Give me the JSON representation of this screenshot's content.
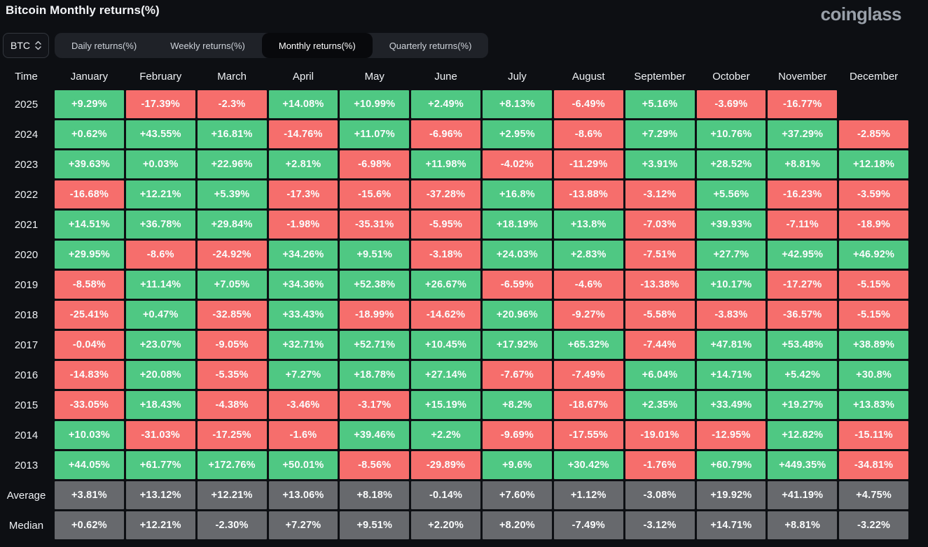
{
  "header": {
    "title": "Bitcoin Monthly returns(%)",
    "logo": "coinglass"
  },
  "controls": {
    "symbol": "BTC",
    "tabs": [
      {
        "label": "Daily returns(%)",
        "active": false
      },
      {
        "label": "Weekly returns(%)",
        "active": false
      },
      {
        "label": "Monthly returns(%)",
        "active": true
      },
      {
        "label": "Quarterly returns(%)",
        "active": false
      }
    ]
  },
  "colors": {
    "positive": "#4fc883",
    "negative": "#f66e6c",
    "summary": "#67696d",
    "background": "#0d0f13"
  },
  "chart_data": {
    "type": "heatmap",
    "title": "Bitcoin Monthly returns(%)",
    "time_label": "Time",
    "months": [
      "January",
      "February",
      "March",
      "April",
      "May",
      "June",
      "July",
      "August",
      "September",
      "October",
      "November",
      "December"
    ],
    "rows": [
      {
        "label": "2025",
        "summary": false,
        "values": [
          "+9.29%",
          "-17.39%",
          "-2.3%",
          "+14.08%",
          "+10.99%",
          "+2.49%",
          "+8.13%",
          "-6.49%",
          "+5.16%",
          "-3.69%",
          "-16.77%",
          ""
        ]
      },
      {
        "label": "2024",
        "summary": false,
        "values": [
          "+0.62%",
          "+43.55%",
          "+16.81%",
          "-14.76%",
          "+11.07%",
          "-6.96%",
          "+2.95%",
          "-8.6%",
          "+7.29%",
          "+10.76%",
          "+37.29%",
          "-2.85%"
        ]
      },
      {
        "label": "2023",
        "summary": false,
        "values": [
          "+39.63%",
          "+0.03%",
          "+22.96%",
          "+2.81%",
          "-6.98%",
          "+11.98%",
          "-4.02%",
          "-11.29%",
          "+3.91%",
          "+28.52%",
          "+8.81%",
          "+12.18%"
        ]
      },
      {
        "label": "2022",
        "summary": false,
        "values": [
          "-16.68%",
          "+12.21%",
          "+5.39%",
          "-17.3%",
          "-15.6%",
          "-37.28%",
          "+16.8%",
          "-13.88%",
          "-3.12%",
          "+5.56%",
          "-16.23%",
          "-3.59%"
        ]
      },
      {
        "label": "2021",
        "summary": false,
        "values": [
          "+14.51%",
          "+36.78%",
          "+29.84%",
          "-1.98%",
          "-35.31%",
          "-5.95%",
          "+18.19%",
          "+13.8%",
          "-7.03%",
          "+39.93%",
          "-7.11%",
          "-18.9%"
        ]
      },
      {
        "label": "2020",
        "summary": false,
        "values": [
          "+29.95%",
          "-8.6%",
          "-24.92%",
          "+34.26%",
          "+9.51%",
          "-3.18%",
          "+24.03%",
          "+2.83%",
          "-7.51%",
          "+27.7%",
          "+42.95%",
          "+46.92%"
        ]
      },
      {
        "label": "2019",
        "summary": false,
        "values": [
          "-8.58%",
          "+11.14%",
          "+7.05%",
          "+34.36%",
          "+52.38%",
          "+26.67%",
          "-6.59%",
          "-4.6%",
          "-13.38%",
          "+10.17%",
          "-17.27%",
          "-5.15%"
        ]
      },
      {
        "label": "2018",
        "summary": false,
        "values": [
          "-25.41%",
          "+0.47%",
          "-32.85%",
          "+33.43%",
          "-18.99%",
          "-14.62%",
          "+20.96%",
          "-9.27%",
          "-5.58%",
          "-3.83%",
          "-36.57%",
          "-5.15%"
        ]
      },
      {
        "label": "2017",
        "summary": false,
        "values": [
          "-0.04%",
          "+23.07%",
          "-9.05%",
          "+32.71%",
          "+52.71%",
          "+10.45%",
          "+17.92%",
          "+65.32%",
          "-7.44%",
          "+47.81%",
          "+53.48%",
          "+38.89%"
        ]
      },
      {
        "label": "2016",
        "summary": false,
        "values": [
          "-14.83%",
          "+20.08%",
          "-5.35%",
          "+7.27%",
          "+18.78%",
          "+27.14%",
          "-7.67%",
          "-7.49%",
          "+6.04%",
          "+14.71%",
          "+5.42%",
          "+30.8%"
        ]
      },
      {
        "label": "2015",
        "summary": false,
        "values": [
          "-33.05%",
          "+18.43%",
          "-4.38%",
          "-3.46%",
          "-3.17%",
          "+15.19%",
          "+8.2%",
          "-18.67%",
          "+2.35%",
          "+33.49%",
          "+19.27%",
          "+13.83%"
        ]
      },
      {
        "label": "2014",
        "summary": false,
        "values": [
          "+10.03%",
          "-31.03%",
          "-17.25%",
          "-1.6%",
          "+39.46%",
          "+2.2%",
          "-9.69%",
          "-17.55%",
          "-19.01%",
          "-12.95%",
          "+12.82%",
          "-15.11%"
        ]
      },
      {
        "label": "2013",
        "summary": false,
        "values": [
          "+44.05%",
          "+61.77%",
          "+172.76%",
          "+50.01%",
          "-8.56%",
          "-29.89%",
          "+9.6%",
          "+30.42%",
          "-1.76%",
          "+60.79%",
          "+449.35%",
          "-34.81%"
        ]
      },
      {
        "label": "Average",
        "summary": true,
        "values": [
          "+3.81%",
          "+13.12%",
          "+12.21%",
          "+13.06%",
          "+8.18%",
          "-0.14%",
          "+7.60%",
          "+1.12%",
          "-3.08%",
          "+19.92%",
          "+41.19%",
          "+4.75%"
        ]
      },
      {
        "label": "Median",
        "summary": true,
        "values": [
          "+0.62%",
          "+12.21%",
          "-2.30%",
          "+7.27%",
          "+9.51%",
          "+2.20%",
          "+8.20%",
          "-7.49%",
          "-3.12%",
          "+14.71%",
          "+8.81%",
          "-3.22%"
        ]
      }
    ]
  }
}
